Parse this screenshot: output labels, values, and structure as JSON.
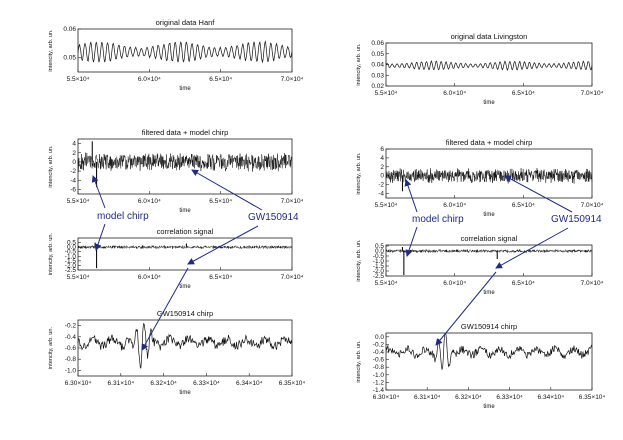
{
  "annotations": {
    "model_chirp": "model chirp",
    "gw_event": "GW150914",
    "color": "#1f2a8a"
  },
  "chart_data": [
    {
      "type": "line",
      "id": "h-orig",
      "detector": "Hanford",
      "title": "original data   Hanf",
      "ylabel": "intencity, arb. un.",
      "xlabel": "time",
      "xlim": [
        55000,
        70000
      ],
      "ylim": [
        0.045,
        0.06
      ],
      "yticks": [
        "0.06",
        "0.05",
        "0.04"
      ],
      "xticks": [
        "5.5×10⁴",
        "6.0×10⁴",
        "6.5×10⁴",
        "7.0×10⁴"
      ],
      "series": [
        {
          "kind": "oscillation",
          "mean": 0.052,
          "amplitude": 0.0035,
          "cycles": 38
        }
      ]
    },
    {
      "type": "line",
      "id": "h-filt",
      "detector": "Hanford",
      "title": "filtered data + model chirp",
      "ylabel": "intencity, arb. un.",
      "xlabel": "time",
      "xlim": [
        55000,
        70000
      ],
      "ylim": [
        -7,
        5
      ],
      "yticks": [
        "4",
        "2",
        "0",
        "-2",
        "-4",
        "-6"
      ],
      "xticks": [
        "5.5×10⁴",
        "6.0×10⁴",
        "6.5×10⁴",
        "7.0×10⁴"
      ],
      "series": [
        {
          "kind": "noise",
          "mean": 0,
          "amplitude": 2.2,
          "spikes": [
            {
              "x": 56000,
              "value": 4.5
            },
            {
              "x": 56300,
              "value": -5.5
            }
          ]
        }
      ]
    },
    {
      "type": "line",
      "id": "h-corr",
      "detector": "Hanford",
      "title": "correlation signal",
      "ylabel": "intencity, arb. un.",
      "xlabel": "time",
      "xlim": [
        55000,
        70000
      ],
      "ylim": [
        -2.5,
        1.0
      ],
      "yticks": [
        "0.5",
        "0.0",
        "-0.5",
        "-1.0",
        "-1.5",
        "-2.0",
        "-2.5"
      ],
      "xticks": [
        "5.5×10⁴",
        "6.0×10⁴",
        "6.5×10⁴",
        "7.0×10⁴"
      ],
      "series": [
        {
          "kind": "noise",
          "mean": 0,
          "amplitude": 0.2,
          "spikes": [
            {
              "x": 56200,
              "value": 0.5
            },
            {
              "x": 56300,
              "value": -2.3
            },
            {
              "x": 62600,
              "value": 0.4
            }
          ]
        }
      ]
    },
    {
      "type": "line",
      "id": "h-chirp",
      "detector": "Hanford",
      "title": "GW150914 chirp",
      "ylabel": "intencity, arb. un.",
      "xlabel": "time",
      "xlim": [
        63000,
        63500
      ],
      "ylim": [
        -1.1,
        -0.1
      ],
      "yticks": [
        "-0.2",
        "-0.4",
        "-0.6",
        "-0.8",
        "-1.0"
      ],
      "xticks": [
        "6.30×10⁴",
        "6.31×10⁴",
        "6.32×10⁴",
        "6.33×10⁴",
        "6.34×10⁴",
        "6.35×10⁴"
      ],
      "series": [
        {
          "kind": "chirp",
          "mean": -0.5,
          "amplitude": 0.08,
          "event_x": 63150,
          "event_amplitude": 0.45
        }
      ]
    },
    {
      "type": "line",
      "id": "l-orig",
      "detector": "Livingston",
      "title": "original data     Livingston",
      "ylabel": "intencity, arb. un.",
      "xlabel": "time",
      "xlim": [
        55000,
        70000
      ],
      "ylim": [
        0.02,
        0.06
      ],
      "yticks": [
        "0.06",
        "0.05",
        "0.04",
        "0.03",
        "0.02"
      ],
      "xticks": [
        "5.5×10⁴",
        "6.0×10⁴",
        "6.5×10⁴",
        "7.0×10⁴"
      ],
      "series": [
        {
          "kind": "oscillation",
          "mean": 0.039,
          "amplitude": 0.004,
          "cycles": 42
        }
      ]
    },
    {
      "type": "line",
      "id": "l-filt",
      "detector": "Livingston",
      "title": "filtered data + model chirp",
      "ylabel": "intencity, arb. un.",
      "xlabel": "time",
      "xlim": [
        55000,
        70000
      ],
      "ylim": [
        -5,
        6
      ],
      "yticks": [
        "6",
        "4",
        "2",
        "0",
        "-2",
        "-4"
      ],
      "xticks": [
        "5.5×10⁴",
        "6.0×10⁴",
        "6.5×10⁴",
        "7.0×10⁴"
      ],
      "series": [
        {
          "kind": "noise",
          "mean": 0,
          "amplitude": 1.8,
          "spikes": [
            {
              "x": 56200,
              "value": -3.5
            }
          ]
        }
      ]
    },
    {
      "type": "line",
      "id": "l-corr",
      "detector": "Livingston",
      "title": "correlation signal",
      "ylabel": "intencity, arb. un.",
      "xlabel": "time",
      "xlim": [
        55000,
        70000
      ],
      "ylim": [
        -2.5,
        0.6
      ],
      "yticks": [
        "0.5",
        "0.0",
        "-0.5",
        "-1.0",
        "-1.5",
        "-2.0",
        "-2.5"
      ],
      "xticks": [
        "5.5×10⁴",
        "6.0×10⁴",
        "6.5×10⁴",
        "7.0×10⁴"
      ],
      "series": [
        {
          "kind": "noise",
          "mean": 0,
          "amplitude": 0.18,
          "spikes": [
            {
              "x": 56200,
              "value": 0.4
            },
            {
              "x": 56300,
              "value": -2.4
            },
            {
              "x": 63100,
              "value": -0.8
            }
          ]
        }
      ]
    },
    {
      "type": "line",
      "id": "l-chirp",
      "detector": "Livingston",
      "title": "GW150914 chirp",
      "ylabel": "intencity, arb. un.",
      "xlabel": "time",
      "xlim": [
        63000,
        63500
      ],
      "ylim": [
        -1.4,
        0.1
      ],
      "yticks": [
        "0.0",
        "-0.2",
        "-0.4",
        "-0.6",
        "-0.8",
        "-1.0",
        "-1.2",
        "-1.4"
      ],
      "xticks": [
        "6.30×10⁴",
        "6.31×10⁴",
        "6.32×10⁴",
        "6.33×10⁴",
        "6.34×10⁴",
        "6.35×10⁴"
      ],
      "series": [
        {
          "kind": "chirp",
          "mean": -0.4,
          "amplitude": 0.1,
          "event_x": 63140,
          "event_amplitude": 0.55
        }
      ]
    }
  ]
}
